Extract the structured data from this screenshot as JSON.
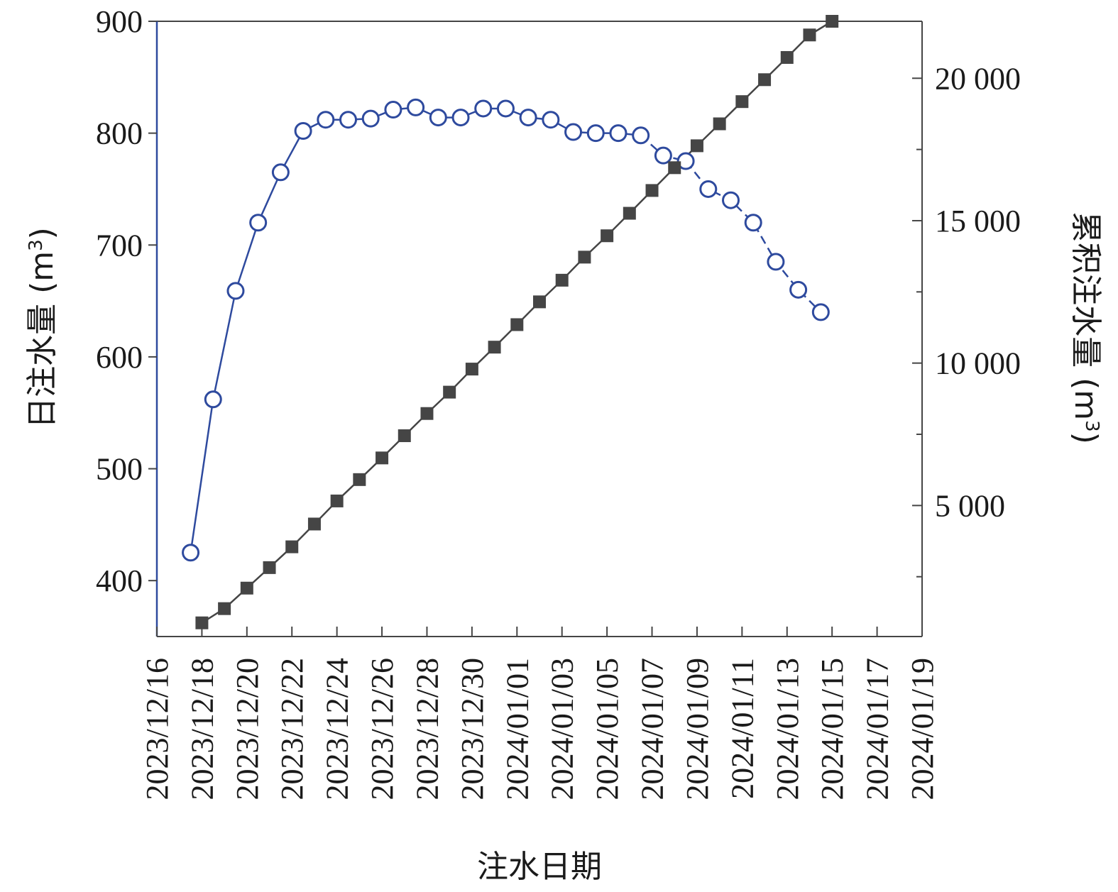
{
  "chart_data": {
    "type": "line",
    "xlabel": "注水日期",
    "ylabel_left": {
      "text": "日注水量 (m",
      "sup": "3",
      "close": ")"
    },
    "ylabel_right": {
      "text": "累积注水量 (m",
      "sup": "3",
      "close": ")"
    },
    "x_range": [
      "2023-12-16",
      "2024-01-19"
    ],
    "x_tick_labels": [
      "2023/12/16",
      "2023/12/18",
      "2023/12/20",
      "2023/12/22",
      "2023/12/24",
      "2023/12/26",
      "2023/12/28",
      "2023/12/30",
      "2024/01/01",
      "2024/01/03",
      "2024/01/05",
      "2024/01/07",
      "2024/01/09",
      "2024/01/11",
      "2024/01/13",
      "2024/01/15",
      "2024/01/17",
      "2024/01/19"
    ],
    "y_left_range": [
      350,
      900
    ],
    "y_left_ticks": [
      400,
      500,
      600,
      700,
      800,
      900
    ],
    "y_left_tick_labels": [
      "400",
      "500",
      "600",
      "700",
      "800",
      "900"
    ],
    "y_right_range": [
      400,
      22000
    ],
    "y_right_ticks": [
      5000,
      10000,
      15000,
      20000
    ],
    "y_right_tick_labels": [
      "5 000",
      "10 000",
      "15 000",
      "20 000"
    ],
    "y_right_minor_ticks": [
      2500,
      7500,
      12500,
      17500
    ],
    "grid": false,
    "series": [
      {
        "axis": "left",
        "marker": "open-circle",
        "color": "#2e4a9e",
        "x": [
          "2023-12-17 12:00",
          "2023-12-18 12:00",
          "2023-12-19 12:00",
          "2023-12-20 12:00",
          "2023-12-21 12:00",
          "2023-12-22 12:00",
          "2023-12-23 12:00",
          "2023-12-24 12:00",
          "2023-12-25 12:00",
          "2023-12-26 12:00",
          "2023-12-27 12:00",
          "2023-12-28 12:00",
          "2023-12-29 12:00",
          "2023-12-30 12:00",
          "2023-12-31 12:00",
          "2024-01-01 12:00",
          "2024-01-02 12:00",
          "2024-01-03 12:00",
          "2024-01-04 12:00",
          "2024-01-05 12:00",
          "2024-01-06 12:00",
          "2024-01-07 12:00",
          "2024-01-08 12:00",
          "2024-01-09 12:00",
          "2024-01-10 12:00",
          "2024-01-11 12:00",
          "2024-01-12 12:00",
          "2024-01-13 12:00",
          "2024-01-14 12:00"
        ],
        "values": [
          425,
          562,
          659,
          720,
          765,
          802,
          812,
          812,
          813,
          821,
          823,
          814,
          814,
          822,
          822,
          814,
          812,
          801,
          800,
          800,
          798,
          780,
          775,
          750,
          740,
          720,
          685,
          660,
          640
        ]
      },
      {
        "axis": "right",
        "marker": "filled-square",
        "color": "#454545",
        "x": [
          "2023-12-18",
          "2023-12-19",
          "2023-12-20",
          "2023-12-21",
          "2023-12-22",
          "2023-12-23",
          "2023-12-24",
          "2023-12-25",
          "2023-12-26",
          "2023-12-27",
          "2023-12-28",
          "2023-12-29",
          "2023-12-30",
          "2023-12-31",
          "2024-01-01",
          "2024-01-02",
          "2024-01-03",
          "2024-01-04",
          "2024-01-05",
          "2024-01-06",
          "2024-01-07",
          "2024-01-08",
          "2024-01-09",
          "2024-01-10",
          "2024-01-11",
          "2024-01-12",
          "2024-01-13",
          "2024-01-14",
          "2024-01-15"
        ],
        "values": [
          880,
          1380,
          2100,
          2820,
          3550,
          4350,
          5160,
          5910,
          6670,
          7450,
          8230,
          8980,
          9790,
          10560,
          11350,
          12150,
          12910,
          13720,
          14470,
          15260,
          16060,
          16860,
          17630,
          18400,
          19180,
          19950,
          20730,
          21520,
          22000
        ]
      }
    ]
  }
}
